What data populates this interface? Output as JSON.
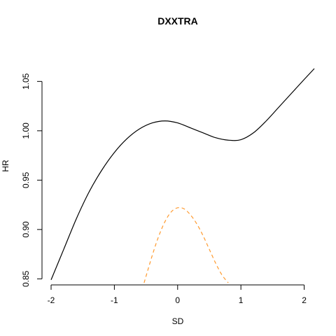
{
  "chart_data": {
    "type": "line",
    "title": "DXXTRA",
    "xlabel": "SD",
    "ylabel": "HR",
    "xlim": [
      -2.0,
      2.16
    ],
    "ylim": [
      0.846,
      1.063
    ],
    "xticks": [
      -2,
      -1,
      0,
      1,
      2
    ],
    "yticks": [
      0.85,
      0.9,
      0.95,
      1.0,
      1.05
    ],
    "ytick_labels": [
      "0.85",
      "0.90",
      "0.95",
      "1.00",
      "1.05"
    ],
    "grid": false,
    "legend": "none",
    "series": [
      {
        "style": "solid",
        "color": "#000000",
        "points": [
          [
            -2.0,
            0.849
          ],
          [
            -1.8,
            0.88
          ],
          [
            -1.6,
            0.911
          ],
          [
            -1.4,
            0.938
          ],
          [
            -1.2,
            0.96
          ],
          [
            -1.0,
            0.978
          ],
          [
            -0.8,
            0.992
          ],
          [
            -0.6,
            1.002
          ],
          [
            -0.4,
            1.008
          ],
          [
            -0.2,
            1.01
          ],
          [
            0.0,
            1.008
          ],
          [
            0.2,
            1.003
          ],
          [
            0.4,
            0.998
          ],
          [
            0.6,
            0.993
          ],
          [
            0.8,
            0.9905
          ],
          [
            1.0,
            0.991
          ],
          [
            1.2,
            0.998
          ],
          [
            1.4,
            1.01
          ],
          [
            1.6,
            1.024
          ],
          [
            1.8,
            1.038
          ],
          [
            2.0,
            1.052
          ],
          [
            2.16,
            1.063
          ]
        ]
      },
      {
        "style": "dashed",
        "color": "#ff9a2e",
        "points": [
          [
            -0.53,
            0.846
          ],
          [
            -0.4,
            0.874
          ],
          [
            -0.3,
            0.893
          ],
          [
            -0.2,
            0.908
          ],
          [
            -0.1,
            0.918
          ],
          [
            0.0,
            0.922
          ],
          [
            0.1,
            0.921
          ],
          [
            0.2,
            0.915
          ],
          [
            0.3,
            0.906
          ],
          [
            0.4,
            0.894
          ],
          [
            0.5,
            0.88
          ],
          [
            0.6,
            0.866
          ],
          [
            0.7,
            0.854
          ],
          [
            0.8,
            0.846
          ]
        ]
      }
    ]
  }
}
